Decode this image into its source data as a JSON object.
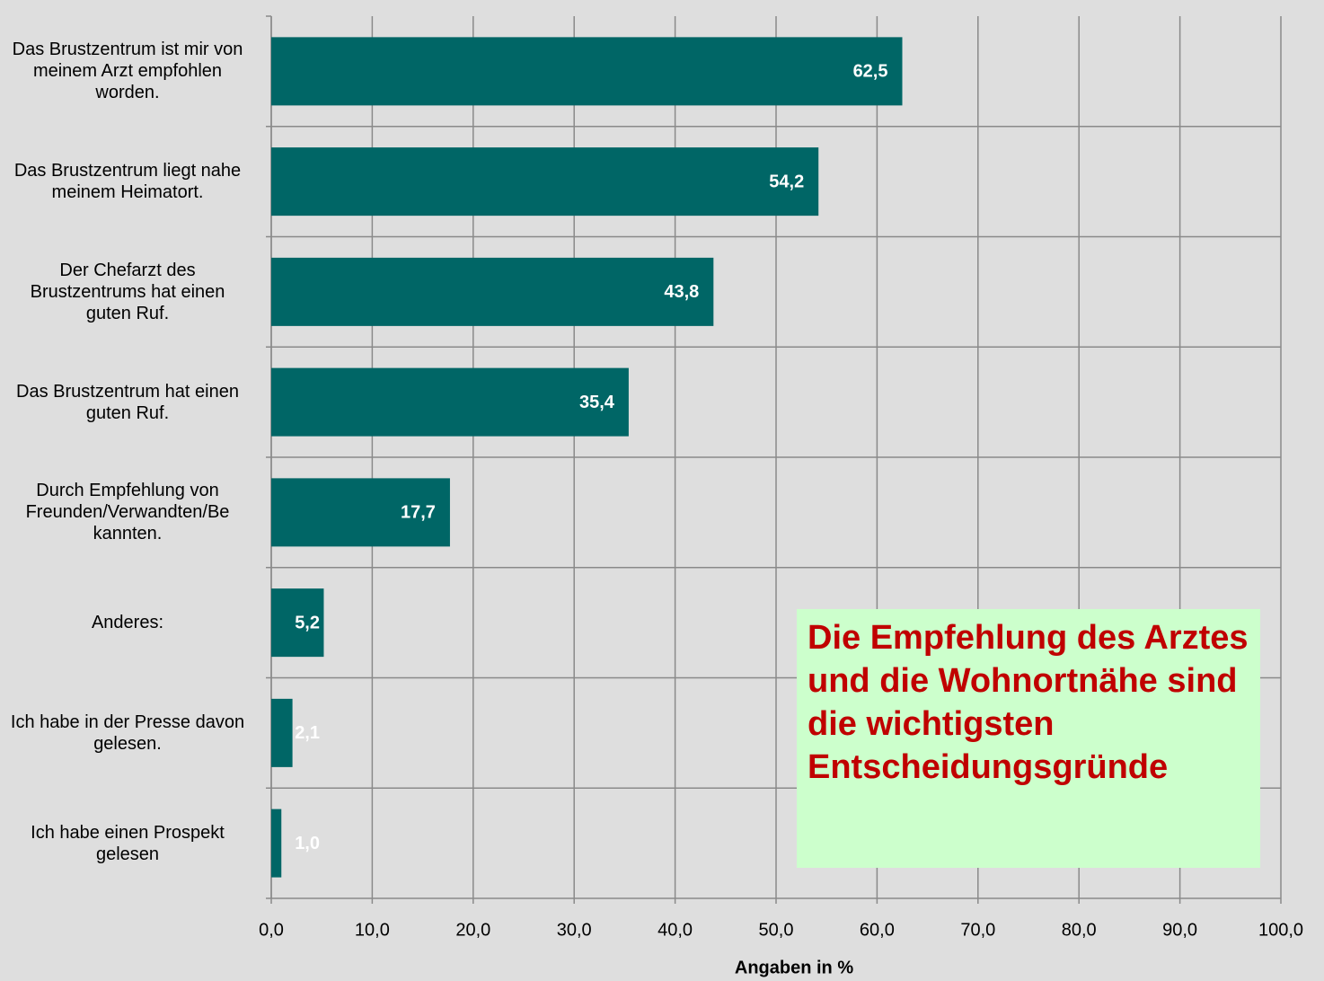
{
  "chart_data": {
    "type": "bar",
    "orientation": "horizontal",
    "categories": [
      "Das Brustzentrum ist mir von meinem Arzt empfohlen worden.",
      "Das Brustzentrum liegt nahe meinem Heimatort.",
      "Der Chefarzt des Brustzentrums hat einen guten Ruf.",
      "Das Brustzentrum hat einen guten Ruf.",
      "Durch Empfehlung von Freunden/Verwandten/Be kannten.",
      "Anderes:",
      "Ich habe in der Presse davon gelesen.",
      "Ich habe einen Prospekt gelesen"
    ],
    "values": [
      62.5,
      54.2,
      43.8,
      35.4,
      17.7,
      5.2,
      2.1,
      1.0
    ],
    "value_labels": [
      "62,5",
      "54,2",
      "43,8",
      "35,4",
      "17,7",
      "5,2",
      "2,1",
      "1,0"
    ],
    "color": "#006666",
    "xlim": [
      0,
      100
    ],
    "xticks": [
      {
        "value": 0,
        "label": "0,0"
      },
      {
        "value": 10,
        "label": "10,0"
      },
      {
        "value": 20,
        "label": "20,0"
      },
      {
        "value": 30,
        "label": "30,0"
      },
      {
        "value": 40,
        "label": "40,0"
      },
      {
        "value": 50,
        "label": "50,0"
      },
      {
        "value": 60,
        "label": "60,0"
      },
      {
        "value": 70,
        "label": "70,0"
      },
      {
        "value": 80,
        "label": "80,0"
      },
      {
        "value": 90,
        "label": "90,0"
      },
      {
        "value": 100,
        "label": "100,0"
      }
    ],
    "xlabel": "Angaben in %",
    "annotation": "Die Empfehlung des Arztes und die Wohnortnähe sind die wichtigsten Entscheidungsgründe",
    "grid": true
  }
}
